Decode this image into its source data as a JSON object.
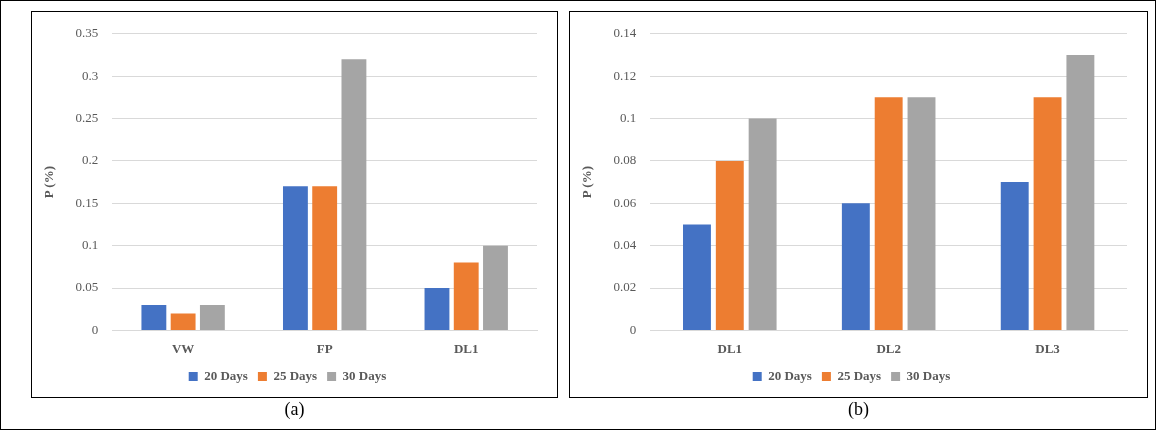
{
  "chart_data": [
    {
      "type": "bar",
      "ylabel": "P (%)",
      "categories": [
        "VW",
        "FP",
        "DL1"
      ],
      "series": [
        {
          "name": "20 Days",
          "color": "#4472c4",
          "values": [
            0.03,
            0.17,
            0.05
          ]
        },
        {
          "name": "25 Days",
          "color": "#ed7d31",
          "values": [
            0.02,
            0.17,
            0.08
          ]
        },
        {
          "name": "30 Days",
          "color": "#a5a5a5",
          "values": [
            0.03,
            0.32,
            0.1
          ]
        }
      ],
      "ylim": [
        0,
        0.35
      ],
      "yticks": [
        0,
        0.05,
        0.1,
        0.15,
        0.2,
        0.25,
        0.3,
        0.35
      ],
      "grid": "y",
      "legend": "bottom",
      "annotations": [
        "(a)"
      ]
    },
    {
      "type": "bar",
      "ylabel": "P (%)",
      "categories": [
        "DL1",
        "DL2",
        "DL3"
      ],
      "series": [
        {
          "name": "20 Days",
          "color": "#4472c4",
          "values": [
            0.05,
            0.06,
            0.07
          ]
        },
        {
          "name": "25 Days",
          "color": "#ed7d31",
          "values": [
            0.08,
            0.11,
            0.11
          ]
        },
        {
          "name": "30 Days",
          "color": "#a5a5a5",
          "values": [
            0.1,
            0.11,
            0.13
          ]
        }
      ],
      "ylim": [
        0,
        0.14
      ],
      "yticks": [
        0,
        0.02,
        0.04,
        0.06,
        0.08,
        0.1,
        0.12,
        0.14
      ],
      "grid": "y",
      "legend": "bottom",
      "annotations": [
        "(b)"
      ]
    }
  ]
}
